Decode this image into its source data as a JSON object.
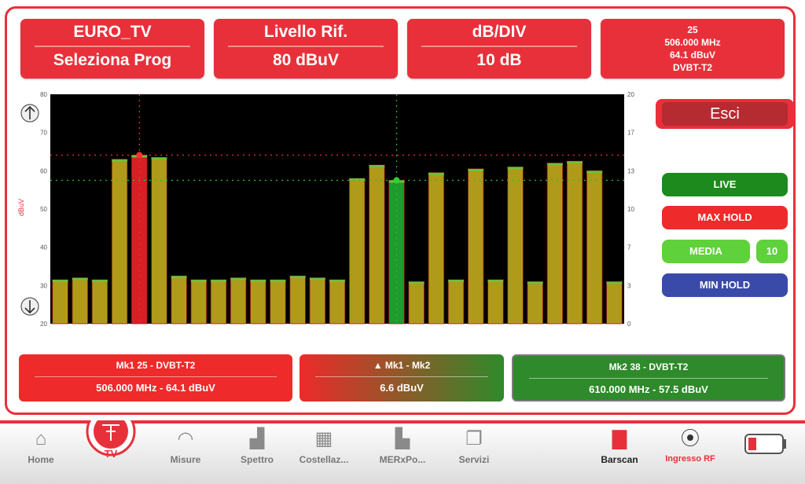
{
  "header": {
    "prog": {
      "top": "EURO_TV",
      "bottom": "Seleziona Prog"
    },
    "ref": {
      "top": "Livello Rif.",
      "bottom": "80 dBuV"
    },
    "div": {
      "top": "dB/DIV",
      "bottom": "10 dB"
    },
    "channel": {
      "num": "25",
      "freq": "506.000 MHz",
      "level": "64.1 dBuV",
      "std": "DVBT-T2"
    }
  },
  "chart_data": {
    "type": "bar",
    "ylabel": "dBuV",
    "ylim": [
      20,
      80
    ],
    "left_ticks": [
      "80",
      "70",
      "60",
      "50",
      "40",
      "30",
      "20"
    ],
    "right_ticks": [
      "20",
      "17",
      "13",
      "10",
      "7",
      "3",
      "0"
    ],
    "values": [
      31.5,
      32,
      31.5,
      63,
      64.1,
      63.5,
      32.5,
      31.5,
      31.5,
      32,
      31.5,
      31.5,
      32.5,
      32,
      31.5,
      58,
      61.5,
      57.5,
      31,
      59.5,
      31.5,
      60.5,
      31.5,
      61,
      31,
      62,
      62.5,
      60,
      31
    ],
    "marker1_index": 4,
    "marker2_index": 17,
    "ref_line_top": 64.1,
    "ref_line_green": 57.5,
    "colors": {
      "bar": "#b09a1a",
      "marker1": "#d81f26",
      "marker2": "#1d9b2c"
    }
  },
  "side": {
    "esci": "Esci",
    "live": "LIVE",
    "maxhold": "MAX HOLD",
    "media": "MEDIA",
    "media_val": "10",
    "minhold": "MIN HOLD"
  },
  "markers": {
    "mk1": {
      "top": "Mk1   25 - DVBT-T2",
      "bottom": "506.000 MHz - 64.1 dBuV"
    },
    "delta": {
      "top": "▲ Mk1 - Mk2",
      "bottom": "6.6 dBuV"
    },
    "mk2": {
      "top": "Mk2   38 - DVBT-T2",
      "bottom": "610.000 MHz - 57.5 dBuV"
    }
  },
  "nav": {
    "home": "Home",
    "tv": "TV",
    "misure": "Misure",
    "spettro": "Spettro",
    "costellaz": "Costellaz...",
    "merxpo": "MERxPo...",
    "servizi": "Servizi",
    "barscan": "Barscan",
    "ingresso": "Ingresso RF"
  }
}
